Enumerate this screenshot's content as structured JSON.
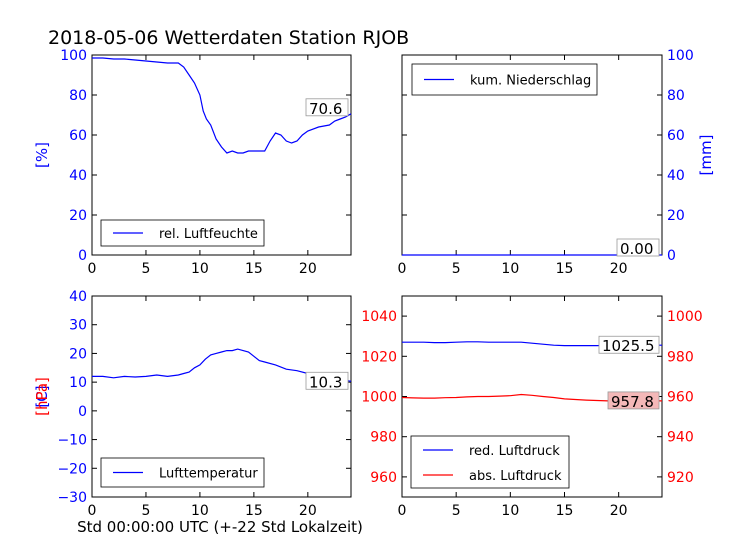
{
  "title": "2018-05-06 Wetterdaten Station RJOB",
  "xlabel": "Std 00:00:00 UTC (+-22 Std Lokalzeit)",
  "colors": {
    "blue": "#0000ff",
    "red": "#ff0000"
  },
  "chart_data": [
    {
      "type": "line",
      "panel": "humidity",
      "ylabel": "[%]",
      "ylabel_color": "#0000ff",
      "xlim": [
        0,
        24
      ],
      "ylim": [
        0,
        100
      ],
      "xticks": [
        0,
        5,
        10,
        15,
        20
      ],
      "yticks": [
        0,
        20,
        40,
        60,
        80,
        100
      ],
      "legend": "lower-left",
      "last_value_label": "70.6",
      "series": [
        {
          "name": "rel. Luftfeuchte",
          "color": "#0000ff",
          "x": [
            0,
            1,
            2,
            3,
            4,
            5,
            6,
            7,
            7.5,
            8,
            8.5,
            9,
            9.5,
            10,
            10.3,
            10.6,
            11,
            11.5,
            12,
            12.5,
            13,
            13.5,
            14,
            14.5,
            15,
            15.5,
            16,
            16.5,
            17,
            17.5,
            18,
            18.5,
            19,
            19.5,
            20,
            21,
            22,
            22.5,
            23,
            23.5,
            24
          ],
          "values": [
            98.5,
            98.5,
            98,
            98,
            97.5,
            97,
            96.5,
            96,
            96,
            96,
            94,
            90,
            86,
            80,
            72,
            68,
            65,
            58,
            54,
            51,
            52,
            51,
            51,
            52,
            52,
            52,
            52,
            57,
            61,
            60,
            57,
            56,
            57,
            60,
            62,
            64,
            65,
            67,
            68,
            69,
            70.6
          ]
        }
      ]
    },
    {
      "type": "line",
      "panel": "precipitation",
      "ylabel": "[mm]",
      "ylabel_color": "#0000ff",
      "xlim": [
        0,
        24
      ],
      "ylim": [
        0,
        100
      ],
      "xticks": [
        0,
        5,
        10,
        15,
        20
      ],
      "yticks": [
        0,
        20,
        40,
        60,
        80,
        100
      ],
      "legend": "top-left",
      "last_value_label": "0.00",
      "series": [
        {
          "name": "kum. Niederschlag",
          "color": "#0000ff",
          "x": [
            0,
            24
          ],
          "values": [
            0,
            0
          ]
        }
      ]
    },
    {
      "type": "line",
      "panel": "temperature",
      "ylabel": "[C]",
      "ylabel_color": "#0000ff",
      "xlim": [
        0,
        24
      ],
      "ylim": [
        -30,
        40
      ],
      "xticks": [
        0,
        5,
        10,
        15,
        20
      ],
      "yticks": [
        -30,
        -20,
        -10,
        0,
        10,
        20,
        30,
        40
      ],
      "legend": "lower-left",
      "last_value_label": "10.3",
      "series": [
        {
          "name": "Lufttemperatur",
          "color": "#0000ff",
          "x": [
            0,
            1,
            2,
            3,
            4,
            5,
            6,
            7,
            8,
            8.5,
            9,
            9.5,
            10,
            10.5,
            11,
            11.5,
            12,
            12.5,
            13,
            13.5,
            14,
            14.5,
            15,
            15.5,
            16,
            17,
            18,
            19,
            20,
            21,
            22,
            23,
            24
          ],
          "values": [
            12,
            12,
            11.5,
            12,
            11.8,
            12,
            12.5,
            12,
            12.5,
            13,
            13.5,
            15,
            16,
            18,
            19.5,
            20,
            20.5,
            21,
            21,
            21.5,
            21,
            20.5,
            19,
            17.5,
            17,
            16,
            14.5,
            14,
            13,
            12,
            11.5,
            11,
            10.3
          ]
        }
      ]
    },
    {
      "type": "line",
      "panel": "pressure",
      "ylabel": "[hPa]",
      "ylabel_color": "#ff0000",
      "xlim": [
        0,
        24
      ],
      "ylim": [
        950,
        1050
      ],
      "ylim_right": [
        910,
        1010
      ],
      "xticks": [
        0,
        5,
        10,
        15,
        20
      ],
      "yticks": [
        960,
        980,
        1000,
        1020,
        1040
      ],
      "yticks_right": [
        920,
        940,
        960,
        980,
        1000
      ],
      "legend": "lower-left",
      "series": [
        {
          "name": "red. Luftdruck",
          "color": "#0000ff",
          "axis": "left",
          "last_value_label": "1025.5",
          "x": [
            0,
            1,
            2,
            3,
            4,
            5,
            6,
            7,
            8,
            9,
            10,
            11,
            12,
            13,
            14,
            15,
            16,
            17,
            18,
            19,
            20,
            21,
            22,
            23,
            24
          ],
          "values": [
            1027,
            1027,
            1027,
            1026.8,
            1026.8,
            1027,
            1027.2,
            1027.2,
            1027,
            1027,
            1027,
            1027,
            1026.5,
            1026,
            1025.5,
            1025.3,
            1025.3,
            1025.3,
            1025.3,
            1025.4,
            1025.5,
            1025.5,
            1025.5,
            1025.5,
            1025.5
          ]
        },
        {
          "name": "abs. Luftdruck",
          "color": "#ff0000",
          "axis": "right",
          "last_value_label": "957.8",
          "x": [
            0,
            1,
            2,
            3,
            4,
            5,
            6,
            7,
            8,
            9,
            10,
            11,
            12,
            13,
            14,
            15,
            16,
            17,
            18,
            19,
            20,
            21,
            22,
            23,
            24
          ],
          "values": [
            959.5,
            959.3,
            959.2,
            959.2,
            959.4,
            959.5,
            959.8,
            960,
            960,
            960.2,
            960.4,
            961,
            960.6,
            960,
            959.5,
            958.8,
            958.5,
            958.2,
            958,
            957.8,
            957.7,
            957.7,
            957.8,
            957.8,
            957.8
          ]
        }
      ]
    }
  ]
}
